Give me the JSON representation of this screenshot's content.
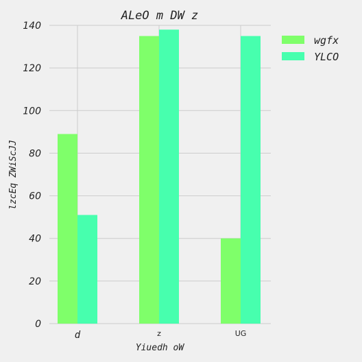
{
  "chart_data": {
    "type": "bar",
    "title": "ALeO m DW z",
    "xlabel": "Yiuedh oW",
    "ylabel": "lzcEq ZWiScJJ",
    "categories": [
      "d",
      "z",
      "UG"
    ],
    "series": [
      {
        "name": "wgfx",
        "values": [
          89,
          135,
          40
        ],
        "color": "#7fff6a"
      },
      {
        "name": "YLCO",
        "values": [
          51,
          138,
          135
        ],
        "color": "#47ffae"
      }
    ],
    "ylim": [
      0,
      140
    ],
    "yticks": [
      0,
      20,
      40,
      60,
      80,
      100,
      120,
      140
    ],
    "grid": true,
    "legend": "top-right"
  }
}
